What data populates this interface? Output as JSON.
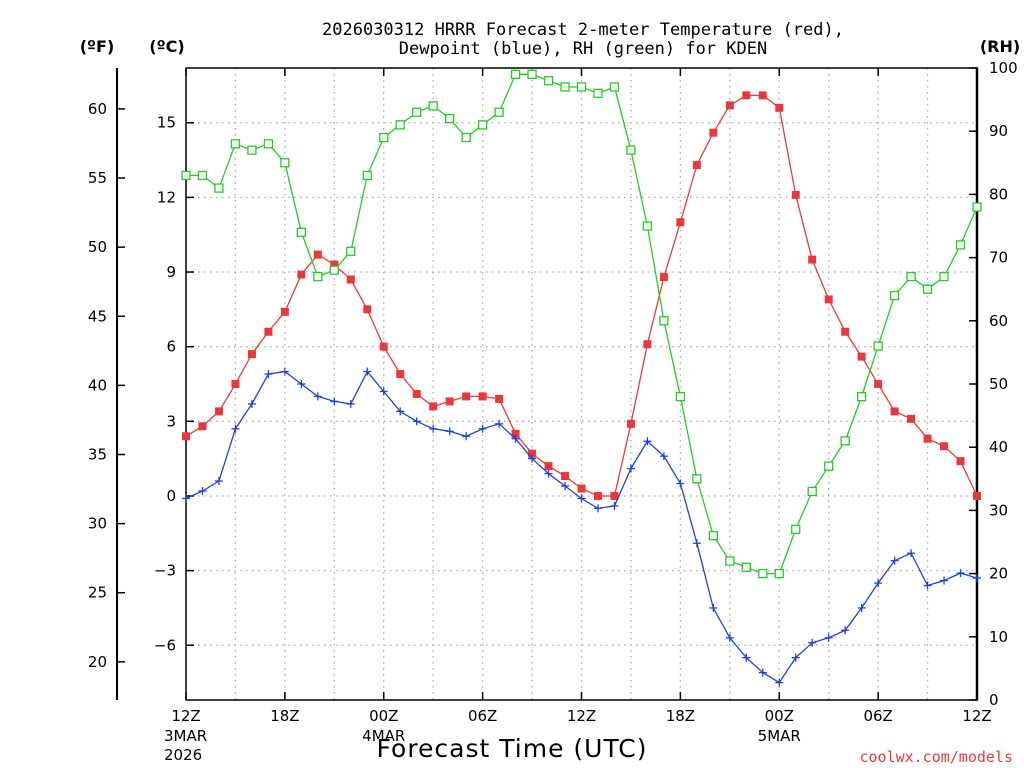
{
  "chart_data": {
    "type": "line",
    "title_lines": [
      "2026030312 HRRR Forecast 2-meter Temperature (red),",
      "Dewpoint (blue), RH (green) for KDEN"
    ],
    "xlabel": "Forecast Time (UTC)",
    "credit": "coolwx.com/models",
    "unit_labels": {
      "f": "(ºF)",
      "c": "(ºC)",
      "rh": "(RH)"
    },
    "x": {
      "min": 0,
      "max": 48,
      "ticks": [
        0,
        6,
        12,
        18,
        24,
        30,
        36,
        42,
        48
      ],
      "tick_labels": [
        "12Z",
        "18Z",
        "00Z",
        "06Z",
        "12Z",
        "18Z",
        "00Z",
        "06Z",
        "12Z"
      ],
      "date_labels": [
        {
          "hour": 0,
          "lines": [
            "3MAR",
            "2026"
          ]
        },
        {
          "hour": 12,
          "lines": [
            "4MAR"
          ]
        },
        {
          "hour": 36,
          "lines": [
            "5MAR"
          ]
        }
      ]
    },
    "celsius_axis": {
      "min": -8.2,
      "max": 17.2,
      "ticks": [
        -6,
        -3,
        0,
        3,
        6,
        9,
        12,
        15
      ],
      "tick_labels": [
        "−6",
        "−3",
        "0",
        "3",
        "6",
        "9",
        "12",
        "15"
      ]
    },
    "fahrenheit_axis": {
      "ticks": [
        20,
        25,
        30,
        35,
        40,
        45,
        50,
        55,
        60
      ],
      "tick_labels": [
        "20",
        "25",
        "30",
        "35",
        "40",
        "45",
        "50",
        "55",
        "60"
      ]
    },
    "rh_axis": {
      "min": 0,
      "max": 100,
      "ticks": [
        0,
        10,
        20,
        30,
        40,
        50,
        60,
        70,
        80,
        90,
        100
      ],
      "tick_labels": [
        "0",
        "10",
        "20",
        "30",
        "40",
        "50",
        "60",
        "70",
        "80",
        "90",
        "100"
      ]
    },
    "series": [
      {
        "name": "Temperature",
        "unit": "°C",
        "color": "#e8383d",
        "marker": "filled-square",
        "values": [
          2.4,
          2.8,
          3.4,
          4.5,
          5.7,
          6.6,
          7.4,
          8.9,
          9.7,
          9.3,
          8.7,
          7.5,
          6.0,
          4.9,
          4.1,
          3.6,
          3.8,
          4.0,
          4.0,
          3.9,
          2.5,
          1.7,
          1.2,
          0.8,
          0.3,
          0.0,
          0.0,
          2.9,
          6.1,
          8.8,
          11.0,
          13.3,
          14.6,
          15.7,
          16.1,
          16.1,
          15.6,
          12.1,
          9.5,
          7.9,
          6.6,
          5.6,
          4.5,
          3.4,
          3.1,
          2.3,
          2.0,
          1.4,
          0.0
        ]
      },
      {
        "name": "Dewpoint",
        "unit": "°C",
        "color": "#2040e0",
        "marker": "plus",
        "values": [
          -0.1,
          0.2,
          0.6,
          2.7,
          3.7,
          4.9,
          5.0,
          4.5,
          4.0,
          3.8,
          3.7,
          5.0,
          4.2,
          3.4,
          3.0,
          2.7,
          2.6,
          2.4,
          2.7,
          2.9,
          2.3,
          1.5,
          0.9,
          0.4,
          -0.1,
          -0.5,
          -0.4,
          1.1,
          2.2,
          1.6,
          0.5,
          -1.9,
          -4.5,
          -5.7,
          -6.5,
          -7.1,
          -7.5,
          -6.5,
          -5.9,
          -5.7,
          -5.4,
          -4.5,
          -3.5,
          -2.6,
          -2.3,
          -3.6,
          -3.4,
          -3.1,
          -3.3
        ]
      },
      {
        "name": "RH",
        "unit": "%",
        "color": "#22cc22",
        "marker": "open-square",
        "values": [
          83,
          83,
          81,
          88,
          87,
          88,
          85,
          74,
          67,
          68,
          71,
          83,
          89,
          91,
          93,
          94,
          92,
          89,
          91,
          93,
          99,
          99,
          98,
          97,
          97,
          96,
          97,
          87,
          75,
          60,
          48,
          35,
          26,
          22,
          21,
          20,
          20,
          27,
          33,
          37,
          41,
          48,
          56,
          64,
          67,
          65,
          67,
          72,
          78
        ]
      }
    ]
  }
}
